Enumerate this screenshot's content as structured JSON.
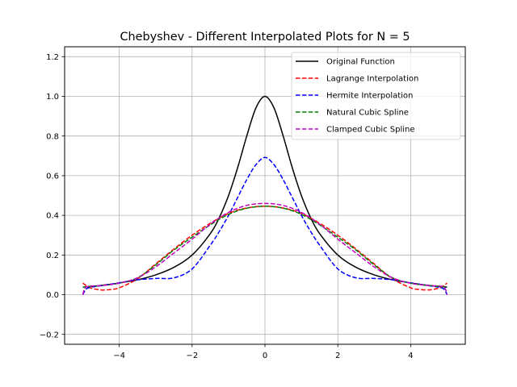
{
  "chart_data": {
    "type": "line",
    "title": "Chebyshev - Different Interpolated Plots for N = 5",
    "xlabel": "",
    "ylabel": "",
    "xlim": [
      -5.5,
      5.5
    ],
    "ylim": [
      -0.25,
      1.25
    ],
    "xticks": [
      -4,
      -2,
      0,
      2,
      4
    ],
    "xtick_labels": [
      "−4",
      "−2",
      "0",
      "2",
      "4"
    ],
    "yticks": [
      -0.2,
      0.0,
      0.2,
      0.4,
      0.6,
      0.8,
      1.0,
      1.2
    ],
    "ytick_labels": [
      "−0.2",
      "0.0",
      "0.2",
      "0.4",
      "0.6",
      "0.8",
      "1.0",
      "1.2"
    ],
    "grid": true,
    "legend_position": "upper right",
    "series": [
      {
        "name": "Original Function",
        "color": "#000000",
        "style": "solid",
        "x": [
          -5,
          -4.5,
          -4,
          -3.5,
          -3,
          -2.5,
          -2,
          -1.5,
          -1.25,
          -1,
          -0.75,
          -0.5,
          -0.25,
          0,
          0.25,
          0.5,
          0.75,
          1,
          1.25,
          1.5,
          2,
          2.5,
          3,
          3.5,
          4,
          4.5,
          5
        ],
        "y": [
          0.038,
          0.047,
          0.059,
          0.075,
          0.1,
          0.138,
          0.2,
          0.308,
          0.39,
          0.5,
          0.64,
          0.8,
          0.941,
          1.0,
          0.941,
          0.8,
          0.64,
          0.5,
          0.39,
          0.308,
          0.2,
          0.138,
          0.1,
          0.075,
          0.059,
          0.047,
          0.038
        ]
      },
      {
        "name": "Lagrange Interpolation",
        "color": "#ff0000",
        "style": "dashed",
        "x": [
          -5,
          -4.8,
          -4.5,
          -4.2,
          -4,
          -3.5,
          -3,
          -2.5,
          -2,
          -1.5,
          -1,
          -0.5,
          0,
          0.5,
          1,
          1.5,
          2,
          2.5,
          3,
          3.5,
          4,
          4.2,
          4.5,
          4.8,
          5
        ],
        "y": [
          0.058,
          0.035,
          0.024,
          0.027,
          0.035,
          0.08,
          0.155,
          0.23,
          0.3,
          0.36,
          0.41,
          0.437,
          0.446,
          0.437,
          0.41,
          0.36,
          0.3,
          0.23,
          0.155,
          0.08,
          0.035,
          0.027,
          0.024,
          0.035,
          0.058
        ]
      },
      {
        "name": "Hermite Interpolation",
        "color": "#0000ff",
        "style": "dashed",
        "x": [
          -5,
          -4.9,
          -4.7,
          -4.5,
          -4,
          -3.5,
          -3,
          -2.5,
          -2,
          -1.5,
          -1.25,
          -1,
          -0.75,
          -0.5,
          -0.25,
          0,
          0.25,
          0.5,
          0.75,
          1,
          1.25,
          1.5,
          2,
          2.5,
          3,
          3.5,
          4,
          4.5,
          4.7,
          4.9,
          5
        ],
        "y": [
          0.0,
          0.03,
          0.04,
          0.045,
          0.06,
          0.075,
          0.082,
          0.085,
          0.13,
          0.25,
          0.32,
          0.4,
          0.49,
          0.58,
          0.655,
          0.692,
          0.655,
          0.58,
          0.49,
          0.4,
          0.32,
          0.25,
          0.13,
          0.085,
          0.082,
          0.075,
          0.06,
          0.045,
          0.04,
          0.03,
          0.0
        ]
      },
      {
        "name": "Natural Cubic Spline",
        "color": "#008000",
        "style": "dashed",
        "x": [
          -5,
          -4.5,
          -4,
          -3.5,
          -3,
          -2.5,
          -2,
          -1.5,
          -1,
          -0.5,
          0,
          0.5,
          1,
          1.5,
          2,
          2.5,
          3,
          3.5,
          4,
          4.5,
          5
        ],
        "y": [
          0.038,
          0.046,
          0.058,
          0.085,
          0.15,
          0.225,
          0.29,
          0.352,
          0.405,
          0.436,
          0.446,
          0.436,
          0.405,
          0.352,
          0.29,
          0.225,
          0.15,
          0.085,
          0.058,
          0.046,
          0.038
        ]
      },
      {
        "name": "Clamped Cubic Spline",
        "color": "#bf00bf",
        "style": "dashed",
        "x": [
          -5,
          -4.95,
          -4.85,
          -4.5,
          -4,
          -3.5,
          -3,
          -2.5,
          -2,
          -1.5,
          -1,
          -0.5,
          0,
          0.5,
          1,
          1.5,
          2,
          2.5,
          3,
          3.5,
          4,
          4.5,
          4.85,
          4.95,
          5
        ],
        "y": [
          0.0,
          0.03,
          0.042,
          0.046,
          0.058,
          0.085,
          0.14,
          0.21,
          0.28,
          0.355,
          0.415,
          0.45,
          0.46,
          0.45,
          0.415,
          0.355,
          0.28,
          0.21,
          0.14,
          0.085,
          0.058,
          0.046,
          0.042,
          0.03,
          0.0
        ]
      }
    ]
  }
}
